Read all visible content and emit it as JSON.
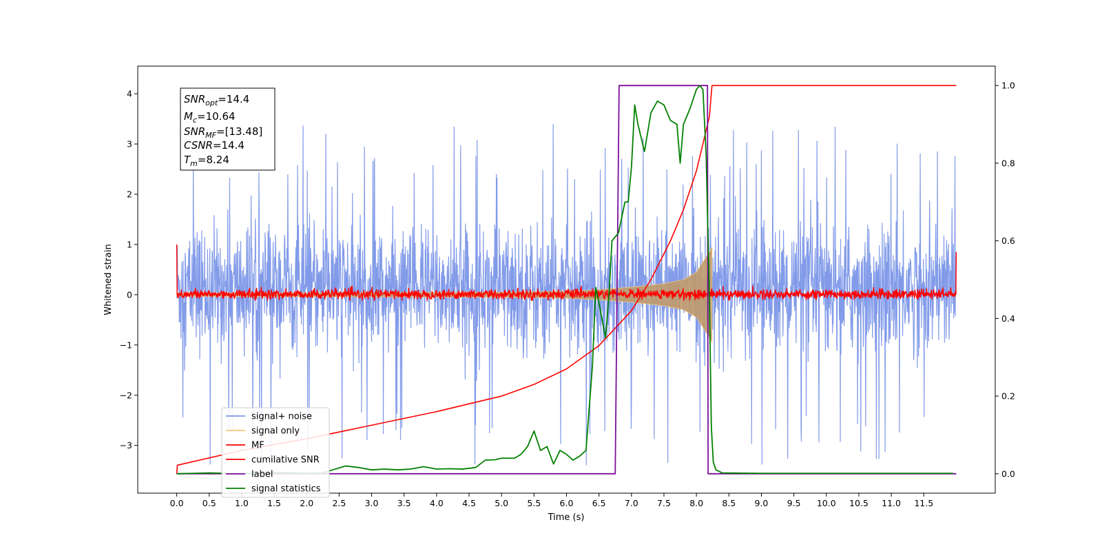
{
  "chart_data": {
    "type": "line",
    "xlabel": "Time (s)",
    "ylabel": "Whitened strain",
    "xlim": [
      -0.6,
      12.6
    ],
    "ylim": [
      -3.95,
      4.55
    ],
    "y2lim": [
      -0.05,
      1.05
    ],
    "x_ticks": [
      "0.0",
      "0.5",
      "1.0",
      "1.5",
      "2.0",
      "2.5",
      "3.0",
      "3.5",
      "4.0",
      "4.5",
      "5.0",
      "5.5",
      "6.0",
      "6.5",
      "7.0",
      "7.5",
      "8.0",
      "8.5",
      "9.0",
      "9.5",
      "10.0",
      "10.5",
      "11.0",
      "11.5"
    ],
    "y_ticks": [
      "4",
      "3",
      "2",
      "1",
      "0",
      "−1",
      "−2",
      "−3"
    ],
    "y2_ticks": [
      "1.0",
      "0.8",
      "0.6",
      "0.4",
      "0.2",
      "0.0"
    ],
    "legend_position": "lower-left",
    "annotation": {
      "snr_opt": {
        "base": "SNR",
        "sub": "opt",
        "value": "=14.4"
      },
      "mc": {
        "base": "M",
        "sub": "c",
        "value": "=10.64"
      },
      "snr_mf": {
        "base": "SNR",
        "sub": "MF",
        "value": "=[13.48]"
      },
      "csnr": {
        "base": "CSNR",
        "value": "=14.4"
      },
      "tm": {
        "base": "T",
        "sub": "m",
        "value": "=8.24"
      }
    },
    "series": [
      {
        "name": "signal+ noise",
        "axis": "left",
        "color": "#7b96e8",
        "style": "noise band",
        "x_range": [
          0.0,
          12.0
        ],
        "typical_range": [
          -1.5,
          2.0
        ],
        "approx_max": 3.5,
        "approx_min": -3.55
      },
      {
        "name": "signal only",
        "axis": "left",
        "color": "#f2c57c",
        "style": "chirp",
        "x": [
          0.0,
          5.0,
          6.0,
          6.5,
          7.0,
          7.5,
          7.8,
          8.0,
          8.1,
          8.2,
          8.24
        ],
        "amplitude": [
          0.03,
          0.05,
          0.07,
          0.1,
          0.15,
          0.22,
          0.3,
          0.45,
          0.65,
          0.85,
          0.95
        ]
      },
      {
        "name": "MF",
        "axis": "left",
        "color": "#ff0000",
        "style": "noise band",
        "x_range": [
          0.0,
          12.0
        ],
        "typical_range": [
          -0.1,
          0.12
        ],
        "edge_peaks": [
          1.0,
          0.85
        ]
      },
      {
        "name": "cumilative SNR",
        "axis": "right",
        "color": "#ff0000",
        "x": [
          0.0,
          0.01,
          1.0,
          2.0,
          3.0,
          4.0,
          5.0,
          5.5,
          6.0,
          6.5,
          7.0,
          7.3,
          7.6,
          7.8,
          8.0,
          8.1,
          8.2,
          8.24,
          8.25,
          12.0
        ],
        "y": [
          0.0,
          0.022,
          0.06,
          0.09,
          0.125,
          0.16,
          0.2,
          0.23,
          0.27,
          0.33,
          0.42,
          0.5,
          0.6,
          0.68,
          0.78,
          0.85,
          0.92,
          1.0,
          1.0,
          1.0
        ]
      },
      {
        "name": "label",
        "axis": "right",
        "color": "#7b0f9a",
        "x": [
          0.0,
          6.75,
          6.81,
          8.17,
          8.18,
          8.2,
          12.0
        ],
        "y": [
          0.0,
          0.0,
          1.0,
          1.0,
          0.0,
          0.0,
          0.0
        ]
      },
      {
        "name": "signal statistics",
        "axis": "right",
        "color": "#008000",
        "x": [
          0.0,
          0.25,
          0.5,
          0.75,
          1.0,
          1.25,
          1.5,
          1.75,
          2.0,
          2.25,
          2.4,
          2.5,
          2.6,
          2.7,
          2.8,
          3.0,
          3.2,
          3.4,
          3.6,
          3.8,
          4.0,
          4.2,
          4.4,
          4.6,
          4.75,
          4.9,
          5.0,
          5.2,
          5.3,
          5.4,
          5.5,
          5.6,
          5.7,
          5.8,
          5.9,
          6.0,
          6.1,
          6.2,
          6.3,
          6.4,
          6.45,
          6.5,
          6.6,
          6.65,
          6.7,
          6.75,
          6.8,
          6.9,
          6.95,
          7.0,
          7.05,
          7.1,
          7.2,
          7.3,
          7.4,
          7.5,
          7.6,
          7.7,
          7.75,
          7.8,
          7.9,
          8.0,
          8.05,
          8.1,
          8.15,
          8.2,
          8.23,
          8.26,
          8.3,
          8.4,
          9.0,
          10.0,
          11.0,
          11.95
        ],
        "y": [
          0.0,
          0.001,
          0.002,
          0.001,
          0.0,
          0.001,
          0.003,
          0.002,
          0.001,
          0.002,
          0.01,
          0.015,
          0.02,
          0.018,
          0.016,
          0.01,
          0.012,
          0.01,
          0.012,
          0.018,
          0.012,
          0.013,
          0.012,
          0.016,
          0.035,
          0.036,
          0.04,
          0.04,
          0.05,
          0.07,
          0.11,
          0.06,
          0.07,
          0.025,
          0.06,
          0.05,
          0.035,
          0.045,
          0.06,
          0.28,
          0.48,
          0.44,
          0.35,
          0.45,
          0.6,
          0.61,
          0.62,
          0.7,
          0.7,
          0.79,
          0.95,
          0.9,
          0.83,
          0.93,
          0.96,
          0.95,
          0.91,
          0.9,
          0.8,
          0.9,
          0.94,
          0.99,
          1.0,
          0.99,
          0.82,
          0.45,
          0.12,
          0.03,
          0.01,
          0.002,
          0.001,
          0.001,
          0.001,
          0.001
        ]
      }
    ]
  }
}
